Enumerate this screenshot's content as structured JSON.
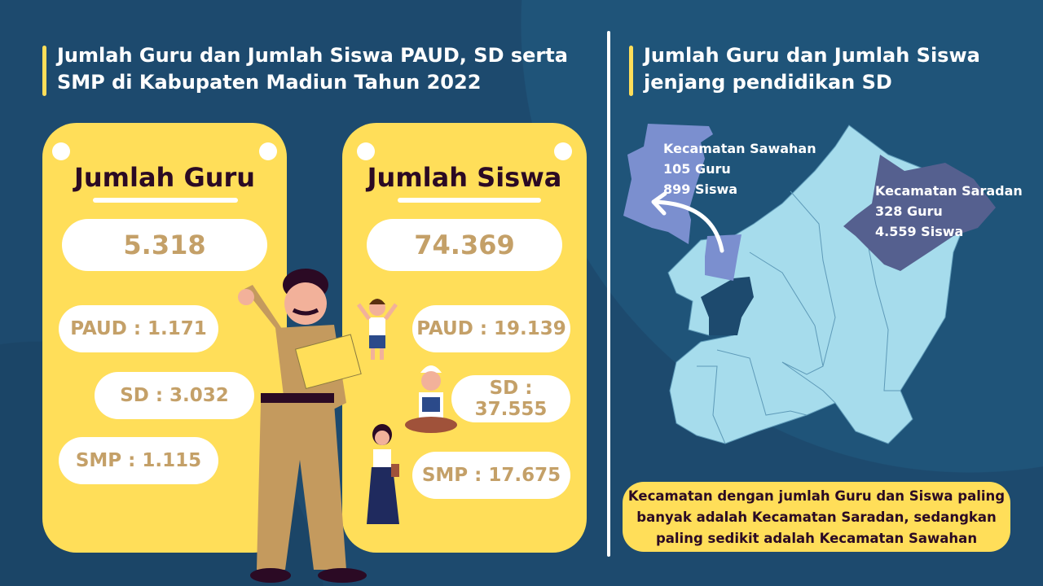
{
  "left_title": "Jumlah Guru dan Jumlah Siswa PAUD, SD serta SMP di Kabupaten Madiun Tahun 2022",
  "right_title": "Jumlah Guru dan Jumlah Siswa jenjang pendidikan SD",
  "guru": {
    "heading": "Jumlah Guru",
    "total": "5.318",
    "paud": "PAUD : 1.171",
    "sd": "SD : 3.032",
    "smp": "SMP : 1.115"
  },
  "siswa": {
    "heading": "Jumlah Siswa",
    "total": "74.369",
    "paud": "PAUD : 19.139",
    "sd": "SD : 37.555",
    "smp": "SMP : 17.675"
  },
  "map": {
    "sawahan": {
      "name": "Kecamatan Sawahan",
      "guru": "105 Guru",
      "siswa": "899 Siswa"
    },
    "saradan": {
      "name": "Kecamatan Saradan",
      "guru": "328 Guru",
      "siswa": "4.559 Siswa"
    }
  },
  "conclusion": "Kecamatan dengan jumlah Guru dan Siswa paling banyak adalah Kecamatan Saradan, sedangkan paling sedikit adalah Kecamatan Sawahan",
  "colors": {
    "background": "#1d4a6e",
    "card": "#ffde59",
    "value_text": "#c4a068",
    "map_base": "#a6dcec",
    "sawahan": "#7b8fcf",
    "saradan": "#55608f"
  }
}
